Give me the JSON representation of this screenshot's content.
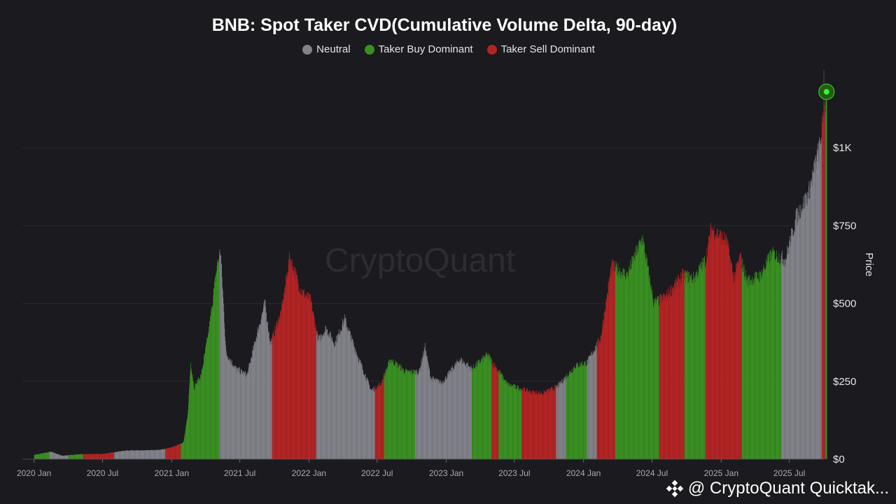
{
  "title": "BNB: Spot Taker CVD(Cumulative Volume Delta, 90-day)",
  "legend": [
    {
      "label": "Neutral",
      "color": "#818189"
    },
    {
      "label": "Taker Buy Dominant",
      "color": "#3a8f22"
    },
    {
      "label": "Taker Sell Dominant",
      "color": "#b22424"
    }
  ],
  "watermark": "CryptoQuant",
  "attribution": "@ CryptoQuant Quicktak...",
  "chart_data": {
    "type": "bar",
    "title": "BNB: Spot Taker CVD(Cumulative Volume Delta, 90-day)",
    "ylabel": "Price",
    "xlabel": "",
    "ylim": [
      0,
      1250
    ],
    "y_ticks": [
      0,
      250,
      500,
      750,
      1000
    ],
    "y_tick_labels": [
      "$0",
      "$250",
      "$500",
      "$750",
      "$1K"
    ],
    "x_start": "2019-12",
    "x_end": "2025-10",
    "x_ticks": [
      {
        "label": "2020 Jan",
        "date": "2020-01"
      },
      {
        "label": "2020 Jul",
        "date": "2020-07"
      },
      {
        "label": "2021 Jan",
        "date": "2021-01"
      },
      {
        "label": "2021 Jul",
        "date": "2021-07"
      },
      {
        "label": "2022 Jan",
        "date": "2022-01"
      },
      {
        "label": "2022 Jul",
        "date": "2022-07"
      },
      {
        "label": "2023 Jan",
        "date": "2023-01"
      },
      {
        "label": "2023 Jul",
        "date": "2023-07"
      },
      {
        "label": "2024 Jan",
        "date": "2024-01"
      },
      {
        "label": "2024 Jul",
        "date": "2024-07"
      },
      {
        "label": "2025 Jan",
        "date": "2025-01"
      },
      {
        "label": "2025 Jul",
        "date": "2025-07"
      }
    ],
    "price_points": [
      [
        "2020-01-01",
        14
      ],
      [
        "2020-02-15",
        24
      ],
      [
        "2020-03-15",
        11
      ],
      [
        "2020-05-01",
        16
      ],
      [
        "2020-07-01",
        17
      ],
      [
        "2020-09-01",
        28
      ],
      [
        "2020-10-15",
        28
      ],
      [
        "2020-12-01",
        30
      ],
      [
        "2021-01-01",
        38
      ],
      [
        "2021-02-01",
        55
      ],
      [
        "2021-02-12",
        140
      ],
      [
        "2021-02-20",
        310
      ],
      [
        "2021-03-01",
        230
      ],
      [
        "2021-03-20",
        270
      ],
      [
        "2021-04-10",
        420
      ],
      [
        "2021-05-01",
        620
      ],
      [
        "2021-05-10",
        670
      ],
      [
        "2021-05-25",
        340
      ],
      [
        "2021-06-20",
        290
      ],
      [
        "2021-07-20",
        270
      ],
      [
        "2021-08-15",
        400
      ],
      [
        "2021-09-05",
        500
      ],
      [
        "2021-09-20",
        370
      ],
      [
        "2021-10-20",
        480
      ],
      [
        "2021-11-10",
        650
      ],
      [
        "2021-12-10",
        540
      ],
      [
        "2022-01-05",
        510
      ],
      [
        "2022-01-25",
        380
      ],
      [
        "2022-02-15",
        420
      ],
      [
        "2022-03-10",
        370
      ],
      [
        "2022-04-05",
        450
      ],
      [
        "2022-05-10",
        330
      ],
      [
        "2022-06-15",
        220
      ],
      [
        "2022-07-10",
        240
      ],
      [
        "2022-08-05",
        320
      ],
      [
        "2022-09-15",
        280
      ],
      [
        "2022-10-20",
        280
      ],
      [
        "2022-11-05",
        360
      ],
      [
        "2022-11-20",
        260
      ],
      [
        "2022-12-20",
        245
      ],
      [
        "2023-02-05",
        320
      ],
      [
        "2023-03-10",
        290
      ],
      [
        "2023-04-20",
        335
      ],
      [
        "2023-06-12",
        240
      ],
      [
        "2023-08-15",
        215
      ],
      [
        "2023-09-15",
        212
      ],
      [
        "2023-10-25",
        235
      ],
      [
        "2023-12-10",
        300
      ],
      [
        "2024-01-10",
        310
      ],
      [
        "2024-02-15",
        390
      ],
      [
        "2024-03-15",
        620
      ],
      [
        "2024-04-25",
        590
      ],
      [
        "2024-06-05",
        710
      ],
      [
        "2024-07-05",
        500
      ],
      [
        "2024-08-05",
        520
      ],
      [
        "2024-09-20",
        590
      ],
      [
        "2024-10-20",
        580
      ],
      [
        "2024-11-20",
        640
      ],
      [
        "2024-12-05",
        740
      ],
      [
        "2025-01-15",
        700
      ],
      [
        "2025-02-03",
        580
      ],
      [
        "2025-02-20",
        650
      ],
      [
        "2025-03-10",
        570
      ],
      [
        "2025-04-15",
        590
      ],
      [
        "2025-05-15",
        660
      ],
      [
        "2025-06-20",
        640
      ],
      [
        "2025-07-20",
        780
      ],
      [
        "2025-08-20",
        850
      ],
      [
        "2025-09-20",
        1010
      ],
      [
        "2025-10-08",
        1180
      ]
    ],
    "regimes": [
      {
        "start": "2019-12-15",
        "end": "2020-02-10",
        "state": "buy"
      },
      {
        "start": "2020-02-10",
        "end": "2020-04-01",
        "state": "neutral"
      },
      {
        "start": "2020-04-01",
        "end": "2020-05-10",
        "state": "buy"
      },
      {
        "start": "2020-05-10",
        "end": "2020-08-01",
        "state": "sell"
      },
      {
        "start": "2020-08-01",
        "end": "2020-12-15",
        "state": "neutral"
      },
      {
        "start": "2020-12-15",
        "end": "2021-01-25",
        "state": "sell"
      },
      {
        "start": "2021-01-25",
        "end": "2021-05-08",
        "state": "buy"
      },
      {
        "start": "2021-05-08",
        "end": "2021-09-25",
        "state": "neutral"
      },
      {
        "start": "2021-09-25",
        "end": "2022-01-20",
        "state": "sell"
      },
      {
        "start": "2022-01-20",
        "end": "2022-06-25",
        "state": "neutral"
      },
      {
        "start": "2022-06-25",
        "end": "2022-07-20",
        "state": "sell"
      },
      {
        "start": "2022-07-20",
        "end": "2022-10-10",
        "state": "buy"
      },
      {
        "start": "2022-10-10",
        "end": "2023-03-10",
        "state": "neutral"
      },
      {
        "start": "2023-03-10",
        "end": "2023-05-01",
        "state": "buy"
      },
      {
        "start": "2023-05-01",
        "end": "2023-05-20",
        "state": "sell"
      },
      {
        "start": "2023-05-20",
        "end": "2023-07-20",
        "state": "buy"
      },
      {
        "start": "2023-07-20",
        "end": "2023-10-20",
        "state": "sell"
      },
      {
        "start": "2023-10-20",
        "end": "2023-11-15",
        "state": "neutral"
      },
      {
        "start": "2023-11-15",
        "end": "2024-01-10",
        "state": "buy"
      },
      {
        "start": "2024-01-10",
        "end": "2024-02-05",
        "state": "neutral"
      },
      {
        "start": "2024-02-05",
        "end": "2024-03-25",
        "state": "sell"
      },
      {
        "start": "2024-03-25",
        "end": "2024-07-20",
        "state": "buy"
      },
      {
        "start": "2024-07-20",
        "end": "2024-09-25",
        "state": "sell"
      },
      {
        "start": "2024-09-25",
        "end": "2024-11-20",
        "state": "buy"
      },
      {
        "start": "2024-11-20",
        "end": "2025-02-25",
        "state": "sell"
      },
      {
        "start": "2025-02-25",
        "end": "2025-06-10",
        "state": "buy"
      },
      {
        "start": "2025-06-10",
        "end": "2025-09-25",
        "state": "neutral"
      },
      {
        "start": "2025-09-25",
        "end": "2025-10-05",
        "state": "sell"
      },
      {
        "start": "2025-10-05",
        "end": "2025-10-10",
        "state": "buy"
      }
    ],
    "latest": {
      "date": "2025-10-08",
      "value": 1180,
      "state": "buy"
    }
  }
}
